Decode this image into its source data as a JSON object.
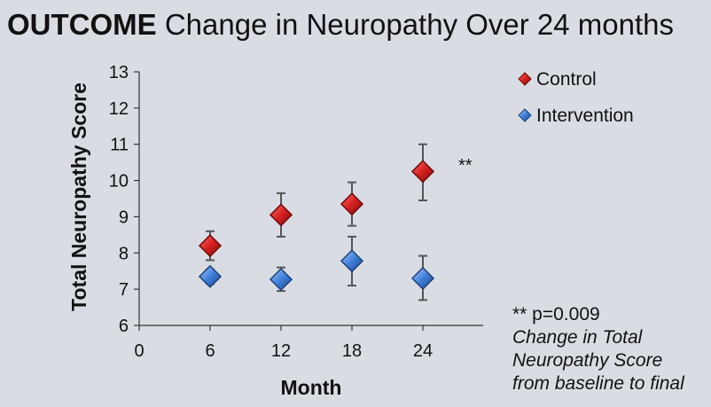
{
  "title": {
    "lead": "OUTCOME",
    "rest": "Change in Neuropathy Over 24 months"
  },
  "chart_data": {
    "type": "scatter",
    "xlabel": "Month",
    "ylabel": "Total Neuropathy Score",
    "xlim": [
      0,
      28
    ],
    "ylim": [
      6,
      13
    ],
    "x_ticks": [
      0,
      6,
      12,
      18,
      24
    ],
    "y_ticks": [
      6,
      7,
      8,
      9,
      10,
      11,
      12,
      13
    ],
    "grid": false,
    "legend_position": "top-right",
    "series": [
      {
        "name": "Control",
        "color": "#d42020",
        "marker": "diamond",
        "x": [
          6,
          12,
          18,
          24
        ],
        "y": [
          8.2,
          9.05,
          9.35,
          10.25
        ],
        "err_low": [
          7.8,
          8.45,
          8.75,
          9.45
        ],
        "err_high": [
          8.6,
          9.65,
          9.95,
          11.0
        ]
      },
      {
        "name": "Intervention",
        "color": "#3f7fd8",
        "marker": "diamond",
        "x": [
          6,
          12,
          18,
          24
        ],
        "y": [
          7.35,
          7.27,
          7.78,
          7.3
        ],
        "err_low": [
          7.15,
          6.95,
          7.1,
          6.7
        ],
        "err_high": [
          7.55,
          7.6,
          8.45,
          7.92
        ]
      }
    ],
    "annotations": [
      {
        "text": "**",
        "x": 24,
        "y": 10.4
      }
    ]
  },
  "note": {
    "pvalue": "** p=0.009",
    "line1": "Change in Total",
    "line2": "Neuropathy Score",
    "line3": "from baseline to final"
  },
  "colors": {
    "background": "#d9dde3",
    "control": "#d42020",
    "intervention": "#3f7fd8"
  }
}
